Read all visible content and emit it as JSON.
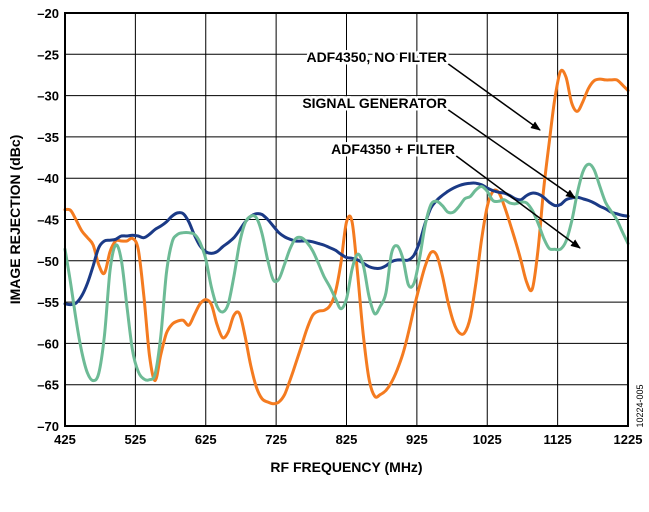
{
  "chart_data": {
    "type": "line",
    "title": "",
    "xlabel": "RF FREQUENCY (MHz)",
    "ylabel": "IMAGE REJECTION (dBc)",
    "xlim": [
      425,
      1225
    ],
    "ylim": [
      -70,
      -20
    ],
    "xticks": [
      425,
      525,
      625,
      725,
      825,
      925,
      1025,
      1125,
      1225
    ],
    "yticks": [
      -20,
      -25,
      -30,
      -35,
      -40,
      -45,
      -50,
      -55,
      -60,
      -65,
      -70
    ],
    "grid": true,
    "legend": "none",
    "figure_id": "10224-005",
    "series": [
      {
        "name": "ADF4350, NO FILTER",
        "color": "#f47b20",
        "x": [
          425,
          433,
          441,
          449,
          457,
          465,
          473,
          481,
          489,
          497,
          505,
          513,
          521,
          529,
          537,
          545,
          553,
          561,
          569,
          577,
          585,
          593,
          601,
          609,
          617,
          625,
          633,
          641,
          649,
          657,
          665,
          673,
          681,
          689,
          697,
          705,
          713,
          721,
          729,
          737,
          745,
          753,
          761,
          769,
          777,
          785,
          793,
          801,
          809,
          817,
          825,
          833,
          841,
          849,
          857,
          865,
          873,
          881,
          889,
          897,
          905,
          913,
          921,
          929,
          937,
          945,
          953,
          961,
          969,
          977,
          985,
          993,
          1001,
          1009,
          1017,
          1025,
          1033,
          1041,
          1049,
          1057,
          1065,
          1073,
          1081,
          1089,
          1097,
          1105,
          1113,
          1121,
          1129,
          1137,
          1145,
          1153,
          1161,
          1169,
          1177,
          1185,
          1193,
          1201,
          1209,
          1217,
          1225
        ],
        "values": [
          -43.8,
          -43.9,
          -45.1,
          -46.4,
          -47.2,
          -48.1,
          -50.5,
          -51.5,
          -48.9,
          -47.6,
          -47.6,
          -47.6,
          -47.3,
          -48.6,
          -54.2,
          -61.4,
          -64.5,
          -61.4,
          -58.8,
          -57.7,
          -57.3,
          -57.2,
          -57.8,
          -56.5,
          -55.2,
          -54.7,
          -55.3,
          -57.7,
          -59.3,
          -58.6,
          -56.6,
          -56.4,
          -59.2,
          -62.7,
          -65.3,
          -66.7,
          -67.1,
          -67.3,
          -67.1,
          -66.2,
          -64.4,
          -62.4,
          -60.3,
          -58.2,
          -56.6,
          -56.1,
          -56.0,
          -55.5,
          -53.9,
          -50.3,
          -45.3,
          -45.3,
          -51.8,
          -59.1,
          -64.3,
          -66.4,
          -66.2,
          -65.7,
          -64.7,
          -63.2,
          -61.3,
          -58.7,
          -55.7,
          -53.0,
          -50.6,
          -49.0,
          -49.3,
          -51.7,
          -54.9,
          -57.4,
          -58.7,
          -58.7,
          -56.8,
          -52.6,
          -47.4,
          -43.4,
          -41.6,
          -41.7,
          -43.3,
          -45.4,
          -47.6,
          -50.0,
          -52.6,
          -53.4,
          -48.8,
          -41.5,
          -35.7,
          -30.4,
          -27.1,
          -27.8,
          -30.9,
          -31.9,
          -30.7,
          -29.1,
          -28.2,
          -28.0,
          -28.1,
          -28.1,
          -28.1,
          -28.7,
          -29.4
        ]
      },
      {
        "name": "SIGNAL GENERATOR",
        "color": "#1b3a86",
        "x": [
          425,
          433,
          441,
          449,
          457,
          465,
          473,
          481,
          489,
          497,
          505,
          513,
          521,
          529,
          537,
          545,
          553,
          561,
          569,
          577,
          585,
          593,
          601,
          609,
          617,
          625,
          633,
          641,
          649,
          657,
          665,
          673,
          681,
          689,
          697,
          705,
          713,
          721,
          729,
          737,
          745,
          753,
          761,
          769,
          777,
          785,
          793,
          801,
          809,
          817,
          825,
          833,
          841,
          849,
          857,
          865,
          873,
          881,
          889,
          897,
          905,
          913,
          921,
          929,
          937,
          945,
          953,
          961,
          969,
          977,
          985,
          993,
          1001,
          1009,
          1017,
          1025,
          1033,
          1041,
          1049,
          1057,
          1065,
          1073,
          1081,
          1089,
          1097,
          1105,
          1113,
          1121,
          1129,
          1137,
          1145,
          1153,
          1161,
          1169,
          1177,
          1185,
          1193,
          1201,
          1209,
          1217,
          1225
        ],
        "values": [
          -55.2,
          -55.3,
          -55.1,
          -54.2,
          -52.7,
          -50.6,
          -48.4,
          -47.6,
          -47.5,
          -47.4,
          -47.0,
          -47.0,
          -46.9,
          -47.0,
          -47.2,
          -46.8,
          -46.2,
          -45.8,
          -45.3,
          -44.6,
          -44.2,
          -44.3,
          -45.3,
          -46.9,
          -48.2,
          -48.9,
          -49.1,
          -48.9,
          -48.3,
          -47.8,
          -47.2,
          -46.3,
          -45.3,
          -44.6,
          -44.3,
          -44.4,
          -45.0,
          -45.8,
          -46.6,
          -47.1,
          -47.4,
          -47.6,
          -47.6,
          -47.6,
          -47.7,
          -47.9,
          -48.1,
          -48.4,
          -48.7,
          -49.2,
          -49.6,
          -49.7,
          -49.9,
          -50.3,
          -50.7,
          -50.9,
          -50.9,
          -50.6,
          -50.1,
          -49.9,
          -49.9,
          -49.9,
          -49.3,
          -47.7,
          -45.4,
          -43.6,
          -42.7,
          -42.1,
          -41.6,
          -41.2,
          -40.9,
          -40.7,
          -40.6,
          -40.6,
          -40.8,
          -41.2,
          -41.5,
          -41.7,
          -41.8,
          -42.1,
          -42.5,
          -42.6,
          -42.1,
          -41.8,
          -41.9,
          -42.3,
          -42.9,
          -43.3,
          -43.2,
          -42.6,
          -42.4,
          -42.3,
          -42.5,
          -42.7,
          -43.0,
          -43.4,
          -43.7,
          -44.1,
          -44.3,
          -44.5,
          -44.6
        ]
      },
      {
        "name": "ADF4350 + FILTER",
        "color": "#6dbb96",
        "x": [
          425,
          433,
          441,
          449,
          457,
          465,
          473,
          481,
          489,
          497,
          505,
          513,
          521,
          529,
          537,
          545,
          553,
          561,
          569,
          577,
          585,
          593,
          601,
          609,
          617,
          625,
          633,
          641,
          649,
          657,
          665,
          673,
          681,
          689,
          697,
          705,
          713,
          721,
          729,
          737,
          745,
          753,
          761,
          769,
          777,
          785,
          793,
          801,
          809,
          817,
          825,
          833,
          841,
          849,
          857,
          865,
          873,
          881,
          889,
          897,
          905,
          913,
          921,
          929,
          937,
          945,
          953,
          961,
          969,
          977,
          985,
          993,
          1001,
          1009,
          1017,
          1025,
          1033,
          1041,
          1049,
          1057,
          1065,
          1073,
          1081,
          1089,
          1097,
          1105,
          1113,
          1121,
          1129,
          1137,
          1145,
          1153,
          1161,
          1169,
          1177,
          1185,
          1193,
          1201,
          1209,
          1217,
          1225
        ],
        "values": [
          -48.6,
          -52.7,
          -57.3,
          -61.1,
          -63.6,
          -64.5,
          -63.6,
          -59.1,
          -51.2,
          -48.1,
          -49.9,
          -55.5,
          -60.9,
          -63.4,
          -64.3,
          -64.4,
          -63.7,
          -59.2,
          -51.6,
          -47.8,
          -46.8,
          -46.6,
          -46.6,
          -46.8,
          -47.8,
          -49.8,
          -53.2,
          -55.5,
          -56.2,
          -55.2,
          -51.9,
          -47.9,
          -45.4,
          -44.6,
          -44.8,
          -46.7,
          -49.9,
          -52.3,
          -52.2,
          -50.4,
          -48.5,
          -47.3,
          -47.2,
          -47.8,
          -48.8,
          -50.3,
          -51.9,
          -53.1,
          -54.5,
          -55.8,
          -54.6,
          -51.0,
          -49.2,
          -50.6,
          -54.3,
          -56.4,
          -55.5,
          -53.9,
          -49.1,
          -48.2,
          -49.7,
          -52.9,
          -52.7,
          -49.6,
          -45.6,
          -43.2,
          -42.8,
          -43.3,
          -44.1,
          -44.1,
          -43.4,
          -42.5,
          -42.2,
          -41.4,
          -41.0,
          -41.6,
          -42.7,
          -42.8,
          -42.6,
          -43.0,
          -43.1,
          -42.9,
          -43.0,
          -43.9,
          -45.4,
          -47.2,
          -48.5,
          -48.6,
          -48.6,
          -47.6,
          -45.2,
          -41.8,
          -39.2,
          -38.3,
          -39.0,
          -41.0,
          -42.9,
          -44.0,
          -45.0,
          -46.5,
          -47.9
        ]
      }
    ],
    "annotations": [
      {
        "text": "ADF4350, NO FILTER",
        "series": 0
      },
      {
        "text": "SIGNAL GENERATOR",
        "series": 1
      },
      {
        "text": "ADF4350 + FILTER",
        "series": 2
      }
    ]
  }
}
